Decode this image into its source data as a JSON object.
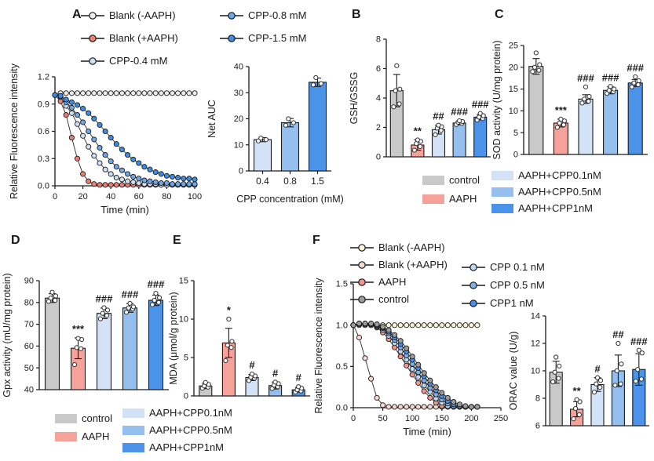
{
  "panels": {
    "A": "A",
    "B": "B",
    "C": "C",
    "D": "D",
    "E": "E",
    "F": "F"
  },
  "colors": {
    "bar_gray": "#c9c9c9",
    "bar_red": "#f6a29b",
    "bar_blue_light": "#d3e2f6",
    "bar_blue_mid": "#94bfee",
    "bar_blue_dark": "#4b93e8",
    "axis": "#1a1a1a"
  },
  "legends": {
    "panelA_col1": [
      {
        "color": "#ebebeb",
        "label": "Blank (-AAPH)"
      },
      {
        "color": "#ee7d73",
        "label": "Blank (+AAPH)"
      },
      {
        "color": "#cfe0f5",
        "label": "CPP-0.4 mM"
      }
    ],
    "panelA_col2": [
      {
        "color": "#6ea7e8",
        "label": "CPP-0.8 mM"
      },
      {
        "color": "#3f8ce6",
        "label": "CPP-1.5 mM"
      }
    ],
    "groups_ctrl": [
      {
        "color": "#c9c9c9",
        "label": "control"
      },
      {
        "color": "#f6a29b",
        "label": "AAPH"
      }
    ],
    "groups_cpp": [
      {
        "color": "#d3e2f6",
        "label": "AAPH+CPP0.1nM"
      },
      {
        "color": "#94bfee",
        "label": "AAPH+CPP0.5nM"
      },
      {
        "color": "#4b93e8",
        "label": "AAPH+CPP1nM"
      }
    ],
    "panelF_col1": [
      {
        "color": "#fbf5d6",
        "label": "Blank (-AAPH)"
      },
      {
        "color": "#f8d7d2",
        "label": "Blank (+AAPH)"
      },
      {
        "color": "#f2958d",
        "label": "AAPH"
      },
      {
        "color": "#9c9c9c",
        "label": "control"
      }
    ],
    "panelF_col2": [
      {
        "color": "#bed7f4",
        "label": "CPP 0.1 nM"
      },
      {
        "color": "#7eb1eb",
        "label": "CPP 0.5 nM"
      },
      {
        "color": "#4890e7",
        "label": "CPP1 nM"
      }
    ]
  },
  "chart_data": [
    {
      "id": "a_line",
      "type": "line",
      "panel": "A",
      "xlabel": "Time (min)",
      "ylabel": "Relative Fluorescence intensity",
      "xlim": [
        0,
        100
      ],
      "ylim": [
        0,
        1.2
      ],
      "xticks": [
        0,
        20,
        40,
        60,
        80,
        100
      ],
      "xtick_labels": [
        "0",
        "20",
        "40",
        "60",
        "80",
        "100"
      ],
      "yticks": [
        0,
        0.3,
        0.6,
        0.9,
        1.2
      ],
      "ytick_labels": [
        "0.0",
        "0.3",
        "0.6",
        "0.9",
        "1.2"
      ],
      "x": [
        0,
        4,
        8,
        12,
        16,
        20,
        24,
        28,
        32,
        36,
        40,
        44,
        48,
        52,
        56,
        60,
        64,
        68,
        72,
        76,
        80,
        84,
        88,
        92,
        96,
        100
      ],
      "series": [
        {
          "name": "Blank (-AAPH)",
          "color": "#ebebeb",
          "y": [
            1.0,
            1.02,
            1.02,
            1.02,
            1.02,
            1.02,
            1.02,
            1.02,
            1.02,
            1.02,
            1.02,
            1.02,
            1.02,
            1.02,
            1.02,
            1.02,
            1.02,
            1.02,
            1.02,
            1.02,
            1.02,
            1.02,
            1.02,
            1.02,
            1.02,
            1.02
          ]
        },
        {
          "name": "Blank (+AAPH)",
          "color": "#ee7d73",
          "y": [
            1.0,
            0.93,
            0.78,
            0.53,
            0.3,
            0.13,
            0.05,
            0.02,
            0.01,
            0.01,
            0.01,
            0.01,
            0.01,
            0.01,
            0.01,
            0.01,
            0.01,
            0.01,
            0.01,
            0.01,
            0.01,
            0.01,
            0.01,
            0.01,
            0.01,
            0.01
          ]
        },
        {
          "name": "CPP-0.4 mM",
          "color": "#cfe0f5",
          "y": [
            1.0,
            0.98,
            0.88,
            0.8,
            0.68,
            0.55,
            0.43,
            0.33,
            0.25,
            0.18,
            0.13,
            0.09,
            0.07,
            0.05,
            0.04,
            0.03,
            0.02,
            0.02,
            0.02,
            0.01,
            0.01,
            0.01,
            0.01,
            0.01,
            0.01,
            0.01
          ]
        },
        {
          "name": "CPP-0.8 mM",
          "color": "#6ea7e8",
          "y": [
            1.0,
            0.99,
            0.92,
            0.86,
            0.78,
            0.7,
            0.6,
            0.51,
            0.42,
            0.34,
            0.27,
            0.21,
            0.17,
            0.13,
            0.1,
            0.08,
            0.06,
            0.05,
            0.04,
            0.03,
            0.03,
            0.02,
            0.02,
            0.02,
            0.02,
            0.02
          ]
        },
        {
          "name": "CPP-1.5 mM",
          "color": "#3f8ce6",
          "y": [
            1.0,
            0.99,
            0.95,
            0.92,
            0.89,
            0.85,
            0.8,
            0.74,
            0.67,
            0.6,
            0.53,
            0.46,
            0.4,
            0.34,
            0.29,
            0.25,
            0.21,
            0.18,
            0.15,
            0.13,
            0.11,
            0.1,
            0.09,
            0.08,
            0.08,
            0.07
          ]
        }
      ]
    },
    {
      "id": "a_bar",
      "type": "bar",
      "panel": "A",
      "xlabel": "CPP concentration (mM)",
      "ylabel": "Net AUC",
      "ylim": [
        0,
        40
      ],
      "yticks": [
        0,
        10,
        20,
        30,
        40
      ],
      "ytick_labels": [
        "0",
        "10",
        "20",
        "30",
        "40"
      ],
      "categories": [
        "0.4",
        "0.8",
        "1.5"
      ],
      "xtick_labels": [
        "0.4",
        "0.8",
        "1.5"
      ],
      "values": [
        12,
        18.5,
        34
      ],
      "errors": [
        0.8,
        1.6,
        1.6
      ],
      "sig": [
        "",
        "",
        ""
      ],
      "colors": [
        "#d3e2f6",
        "#94bfee",
        "#4b93e8"
      ],
      "points": [
        [
          11.5,
          12,
          12.6
        ],
        [
          17.5,
          18.5,
          20
        ],
        [
          33,
          33.5,
          35.8
        ]
      ]
    },
    {
      "id": "b_bar",
      "type": "bar",
      "panel": "B",
      "xlabel": "",
      "ylabel": "GSH/GSSG",
      "ylim": [
        0,
        8
      ],
      "yticks": [
        0,
        2,
        4,
        6,
        8
      ],
      "ytick_labels": [
        "0",
        "2",
        "4",
        "6",
        "8"
      ],
      "categories": [
        "control",
        "AAPH",
        "AAPH+CPP0.1nM",
        "AAPH+CPP0.5nM",
        "AAPH+CPP1nM"
      ],
      "values": [
        4.5,
        0.8,
        1.85,
        2.3,
        2.7
      ],
      "errors": [
        1.1,
        0.35,
        0.3,
        0.12,
        0.18
      ],
      "sig": [
        "",
        "**",
        "##",
        "###",
        "###"
      ],
      "colors": [
        "#c9c9c9",
        "#f6a29b",
        "#d3e2f6",
        "#94bfee",
        "#4b93e8"
      ],
      "points": [
        [
          3.4,
          3.6,
          4.5,
          4.6,
          6.2
        ],
        [
          0.45,
          0.7,
          0.9,
          1.05,
          1.15
        ],
        [
          1.5,
          1.8,
          1.95,
          2.05,
          2.15
        ],
        [
          2.2,
          2.28,
          2.35,
          2.4,
          2.45
        ],
        [
          2.5,
          2.6,
          2.7,
          2.8,
          2.95
        ]
      ]
    },
    {
      "id": "c_bar",
      "type": "bar",
      "panel": "C",
      "xlabel": "",
      "ylabel": "SOD activity (U/mg protein)",
      "ylim": [
        0,
        25
      ],
      "yticks": [
        0,
        5,
        10,
        15,
        20,
        25
      ],
      "ytick_labels": [
        "0",
        "5",
        "10",
        "15",
        "20",
        "25"
      ],
      "categories": [
        "control",
        "AAPH",
        "AAPH+CPP0.1nM",
        "AAPH+CPP0.5nM",
        "AAPH+CPP1nM"
      ],
      "values": [
        20.2,
        7.2,
        12.7,
        14.7,
        16.4
      ],
      "errors": [
        1.8,
        0.9,
        1.0,
        0.8,
        0.8
      ],
      "sig": [
        "",
        "***",
        "###",
        "###",
        "###"
      ],
      "colors": [
        "#c9c9c9",
        "#f6a29b",
        "#d3e2f6",
        "#94bfee",
        "#4b93e8"
      ],
      "points": [
        [
          19,
          19.3,
          20,
          20.6,
          23.3
        ],
        [
          6.2,
          6.8,
          7.2,
          7.7,
          8.1
        ],
        [
          11.8,
          12.2,
          12.7,
          13.3,
          15.5
        ],
        [
          14,
          14.4,
          14.7,
          15,
          15.6
        ],
        [
          15.5,
          16,
          16.4,
          16.9,
          17.8
        ]
      ]
    },
    {
      "id": "d_bar",
      "type": "bar",
      "panel": "D",
      "xlabel": "",
      "ylabel": "Gpx activity (mU/mg protein)",
      "ylim": [
        40,
        90
      ],
      "yticks": [
        40,
        50,
        60,
        70,
        80,
        90
      ],
      "ytick_labels": [
        "40",
        "50",
        "60",
        "70",
        "80",
        "90"
      ],
      "categories": [
        "control",
        "AAPH",
        "AAPH+CPP0.1nM",
        "AAPH+CPP0.5nM",
        "AAPH+CPP1nM"
      ],
      "values": [
        82,
        59,
        75,
        77.5,
        81
      ],
      "errors": [
        2,
        4.8,
        2.4,
        2,
        2.4
      ],
      "sig": [
        "",
        "***",
        "###",
        "###",
        "###"
      ],
      "colors": [
        "#c9c9c9",
        "#f6a29b",
        "#d3e2f6",
        "#94bfee",
        "#4b93e8"
      ],
      "points": [
        [
          80.5,
          81,
          82,
          83,
          84.7
        ],
        [
          51.5,
          58.8,
          59.3,
          63,
          63.5
        ],
        [
          72.5,
          74,
          75,
          76.5,
          77.6
        ],
        [
          75.5,
          77,
          77.5,
          78,
          79.6
        ],
        [
          79,
          80,
          81,
          82.2,
          84.2
        ]
      ]
    },
    {
      "id": "e_bar",
      "type": "bar",
      "panel": "E",
      "xlabel": "",
      "ylabel": "MDA (μmol/g protein)",
      "ylim": [
        0,
        15
      ],
      "yticks": [
        0,
        5,
        10,
        15
      ],
      "ytick_labels": [
        "0",
        "5",
        "10",
        "15"
      ],
      "categories": [
        "control",
        "AAPH",
        "AAPH+CPP0.1nM",
        "AAPH+CPP0.5nM",
        "AAPH+CPP1nM"
      ],
      "values": [
        1.3,
        6.9,
        2.4,
        1.35,
        0.8
      ],
      "errors": [
        0.35,
        1.9,
        0.4,
        0.45,
        0.3
      ],
      "sig": [
        "",
        "*",
        "#",
        "#",
        "#"
      ],
      "colors": [
        "#c9c9c9",
        "#f6a29b",
        "#d3e2f6",
        "#94bfee",
        "#4b93e8"
      ],
      "points": [
        [
          1.0,
          1.15,
          1.3,
          1.5,
          1.75
        ],
        [
          4.6,
          6.3,
          6.6,
          7.1,
          10.0
        ],
        [
          2.0,
          2.3,
          2.45,
          2.6,
          2.85
        ],
        [
          0.95,
          1.2,
          1.4,
          1.6,
          1.8
        ],
        [
          0.5,
          0.65,
          0.8,
          1.0,
          1.2
        ]
      ]
    },
    {
      "id": "f_line",
      "type": "line",
      "panel": "F",
      "xlabel": "Time (min)",
      "ylabel": "Relative Fluorescence intensity",
      "xlim": [
        0,
        250
      ],
      "ylim": [
        0,
        1.5
      ],
      "xticks": [
        0,
        50,
        100,
        150,
        200,
        250
      ],
      "xtick_labels": [
        "0",
        "50",
        "100",
        "150",
        "200",
        "250"
      ],
      "yticks": [
        0,
        0.5,
        1.0,
        1.5
      ],
      "ytick_labels": [
        "0.0",
        "0.5",
        "1.0",
        "1.5"
      ],
      "x": [
        0,
        10,
        20,
        30,
        40,
        50,
        60,
        70,
        80,
        90,
        100,
        110,
        120,
        130,
        140,
        150,
        160,
        170,
        180,
        190,
        200,
        210
      ],
      "series": [
        {
          "name": "Blank (-AAPH)",
          "color": "#fbf5d6",
          "y": [
            1.0,
            1.0,
            1.0,
            1.0,
            1.0,
            1.0,
            1.0,
            1.0,
            1.0,
            1.0,
            1.0,
            1.0,
            1.0,
            1.0,
            1.0,
            1.0,
            1.0,
            1.0,
            1.0,
            1.0,
            1.0,
            1.0
          ]
        },
        {
          "name": "Blank (+AAPH)",
          "color": "#f8d7d2",
          "y": [
            1.0,
            0.85,
            0.6,
            0.35,
            0.12,
            0.03,
            0.01,
            0.01,
            0.01,
            0.01,
            0.01,
            0.01,
            0.01,
            0.01,
            0.01,
            0.01,
            0.01,
            0.01,
            0.01,
            0.01,
            0.01,
            0.01
          ]
        },
        {
          "name": "AAPH",
          "color": "#f2958d",
          "y": [
            1.0,
            1.01,
            1.01,
            1.0,
            0.97,
            0.91,
            0.83,
            0.73,
            0.62,
            0.51,
            0.4,
            0.3,
            0.2,
            0.12,
            0.06,
            0.02,
            0.01,
            0.01,
            0.01,
            0.01,
            0.01,
            0.01
          ]
        },
        {
          "name": "CPP 0.1 nM",
          "color": "#bed7f4",
          "y": [
            1.0,
            1.01,
            1.01,
            1.0,
            0.98,
            0.94,
            0.87,
            0.78,
            0.68,
            0.58,
            0.47,
            0.37,
            0.27,
            0.19,
            0.11,
            0.06,
            0.02,
            0.01,
            0.01,
            0.01,
            0.01,
            0.01
          ]
        },
        {
          "name": "CPP 0.5 nM",
          "color": "#7eb1eb",
          "y": [
            1.0,
            1.02,
            1.01,
            1.01,
            0.99,
            0.96,
            0.9,
            0.82,
            0.73,
            0.63,
            0.53,
            0.43,
            0.33,
            0.24,
            0.16,
            0.1,
            0.05,
            0.02,
            0.01,
            0.01,
            0.01,
            0.01
          ]
        },
        {
          "name": "CPP1 nM",
          "color": "#4890e7",
          "y": [
            1.0,
            1.02,
            1.02,
            1.01,
            1.0,
            0.97,
            0.92,
            0.85,
            0.77,
            0.68,
            0.58,
            0.48,
            0.38,
            0.29,
            0.21,
            0.14,
            0.08,
            0.04,
            0.02,
            0.01,
            0.01,
            0.01
          ]
        },
        {
          "name": "control",
          "color": "#9c9c9c",
          "y": [
            1.0,
            1.02,
            1.02,
            1.02,
            1.01,
            0.98,
            0.94,
            0.88,
            0.81,
            0.72,
            0.62,
            0.52,
            0.42,
            0.33,
            0.25,
            0.18,
            0.12,
            0.07,
            0.04,
            0.02,
            0.01,
            0.01
          ]
        }
      ]
    },
    {
      "id": "orac_bar",
      "type": "bar",
      "panel": "F",
      "xlabel": "",
      "ylabel": "ORAC value (U/g)",
      "ylim": [
        6,
        14
      ],
      "yticks": [
        6,
        8,
        10,
        12,
        14
      ],
      "ytick_labels": [
        "6",
        "8",
        "10",
        "12",
        "14"
      ],
      "categories": [
        "control",
        "AAPH",
        "AAPH+CPP0.1nM",
        "AAPH+CPP0.5nM",
        "AAPH+CPP1nM"
      ],
      "values": [
        9.9,
        7.2,
        9.0,
        10.0,
        10.1
      ],
      "errors": [
        0.8,
        0.55,
        0.5,
        1.15,
        1.15
      ],
      "sig": [
        "",
        "**",
        "#",
        "##",
        "###"
      ],
      "colors": [
        "#c9c9c9",
        "#f6a29b",
        "#d3e2f6",
        "#94bfee",
        "#4b93e8"
      ],
      "points": [
        [
          9.2,
          9.45,
          9.9,
          10.35,
          11.0
        ],
        [
          6.5,
          6.8,
          7.25,
          7.75,
          7.9
        ],
        [
          8.45,
          8.8,
          9.05,
          9.3,
          9.5
        ],
        [
          8.95,
          9.05,
          10.0,
          10.5,
          12.0
        ],
        [
          9.25,
          9.4,
          10.1,
          11.3,
          11.5
        ]
      ]
    }
  ]
}
